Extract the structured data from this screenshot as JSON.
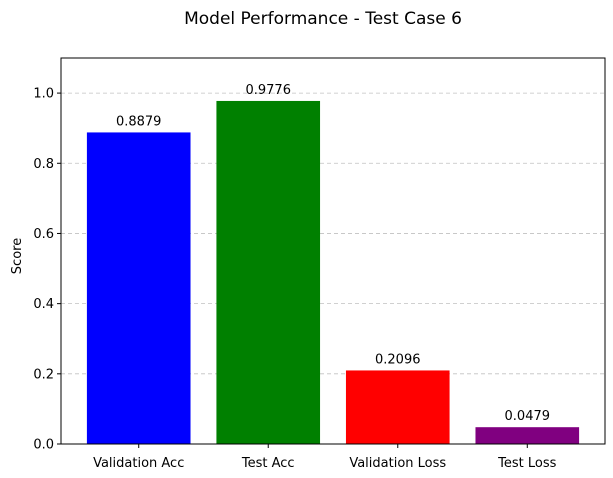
{
  "chart_data": {
    "type": "bar",
    "title": "Model Performance - Test Case 6",
    "xlabel": "",
    "ylabel": "Score",
    "categories": [
      "Validation Acc",
      "Test Acc",
      "Validation Loss",
      "Test Loss"
    ],
    "values": [
      0.8879,
      0.9776,
      0.2096,
      0.0479
    ],
    "value_labels": [
      "0.8879",
      "0.9776",
      "0.2096",
      "0.0479"
    ],
    "colors": [
      "#0000ff",
      "#008000",
      "#ff0000",
      "#800080"
    ],
    "ylim": [
      0,
      1.1
    ],
    "yticks": [
      0.0,
      0.2,
      0.4,
      0.6,
      0.8,
      1.0
    ],
    "ytick_labels": [
      "0.0",
      "0.2",
      "0.4",
      "0.6",
      "0.8",
      "1.0"
    ],
    "grid": "y-dashed",
    "legend": "none"
  }
}
